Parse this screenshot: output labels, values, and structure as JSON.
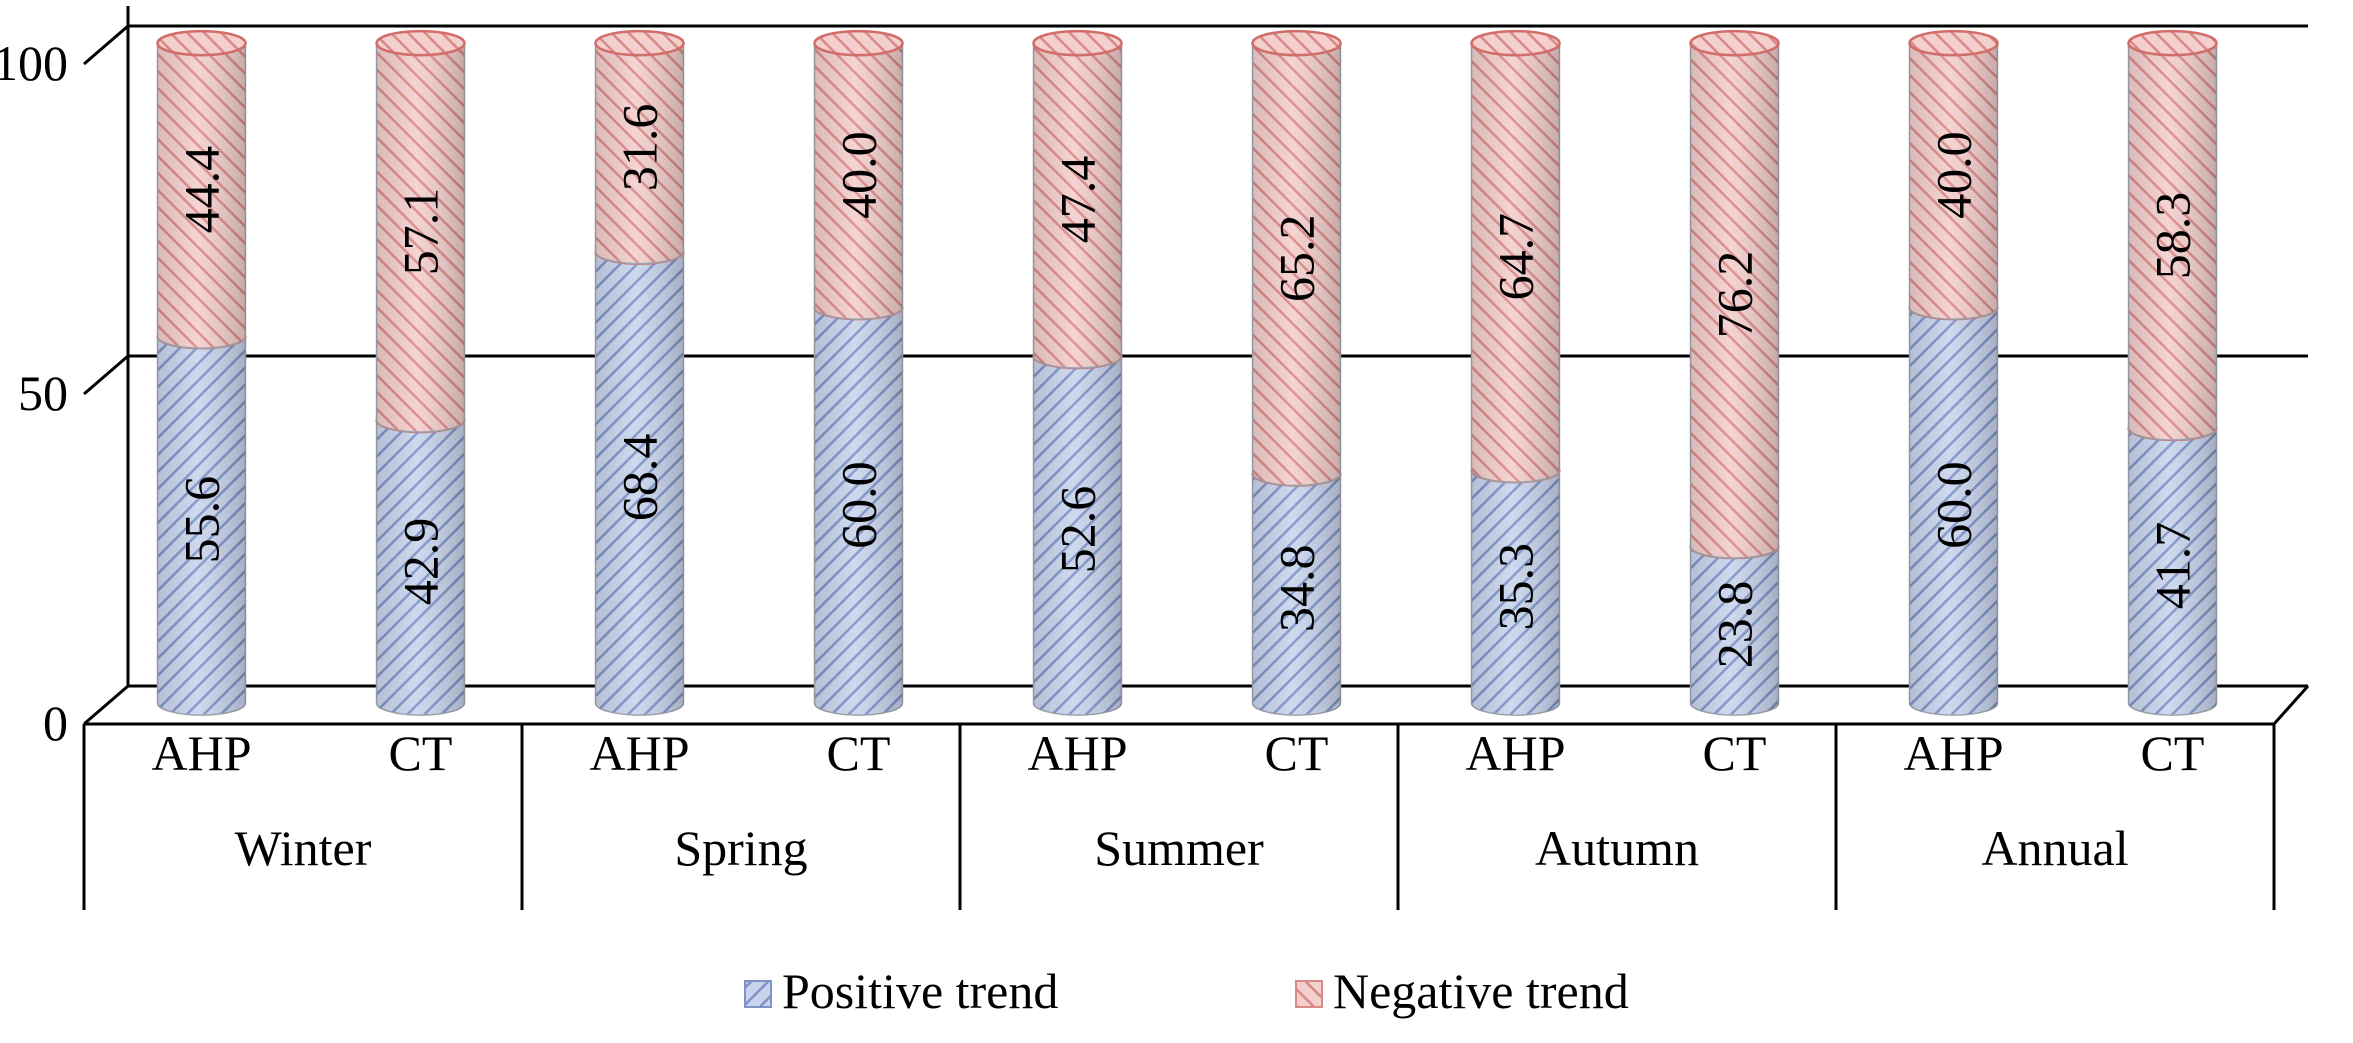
{
  "chart_data": {
    "type": "bar",
    "stacked": true,
    "title": "",
    "xlabel": "",
    "ylabel": "",
    "ylim": [
      0,
      100
    ],
    "yticks": [
      0,
      50,
      100
    ],
    "grid": true,
    "legend_position": "bottom",
    "groups": [
      "Winter",
      "Spring",
      "Summer",
      "Autumn",
      "Annual"
    ],
    "subcategories": [
      "AHP",
      "CT"
    ],
    "categories": [
      "Winter AHP",
      "Winter CT",
      "Spring AHP",
      "Spring CT",
      "Summer AHP",
      "Summer CT",
      "Autumn AHP",
      "Autumn CT",
      "Annual AHP",
      "Annual CT"
    ],
    "series": [
      {
        "name": "Positive trend",
        "color": "#9fb3d9",
        "values": [
          55.6,
          42.9,
          68.4,
          60.0,
          52.6,
          34.8,
          35.3,
          23.8,
          60.0,
          41.7
        ]
      },
      {
        "name": "Negative trend",
        "color": "#e8a4a1",
        "values": [
          44.4,
          57.1,
          31.6,
          40.0,
          47.4,
          65.2,
          64.7,
          76.2,
          40.0,
          58.3
        ]
      }
    ],
    "value_labels": [
      [
        "55.6",
        "42.9",
        "68.4",
        "60.0",
        "52.6",
        "34.8",
        "35.3",
        "23.8",
        "60.0",
        "41.7"
      ],
      [
        "44.4",
        "57.1",
        "31.6",
        "40.0",
        "47.4",
        "65.2",
        "64.7",
        "76.2",
        "40.0",
        "58.3"
      ]
    ]
  }
}
